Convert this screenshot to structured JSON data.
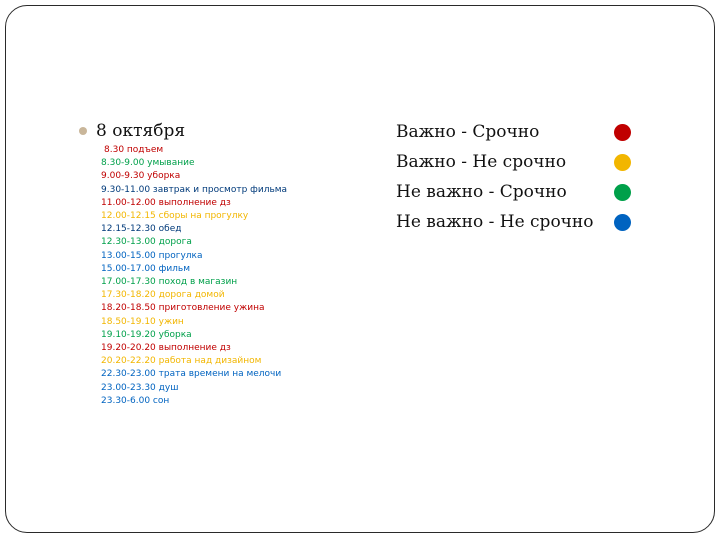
{
  "colors": {
    "red": "#c00000",
    "yellow": "#f2b600",
    "green": "#00a04a",
    "blue": "#0063c0",
    "dark_blue": "#003a7a"
  },
  "heading": "8 октября",
  "schedule": [
    {
      "text": "8.30 подъем",
      "color": "#c00000"
    },
    {
      "text": "8.30-9.00 умывание",
      "color": "#00a04a"
    },
    {
      "text": "9.00-9.30 уборка",
      "color": "#c00000"
    },
    {
      "text": "9.30-11.00 завтрак и просмотр фильма",
      "color": "#003a7a"
    },
    {
      "text": "11.00-12.00 выполнение дз",
      "color": "#c00000"
    },
    {
      "text": "12.00-12.15 сборы на прогулку",
      "color": "#f2b600"
    },
    {
      "text": "12.15-12.30 обед",
      "color": "#003a7a"
    },
    {
      "text": "12.30-13.00 дорога",
      "color": "#00a04a"
    },
    {
      "text": "13.00-15.00 прогулка",
      "color": "#0063c0"
    },
    {
      "text": "15.00-17.00 фильм",
      "color": "#0063c0"
    },
    {
      "text": "17.00-17.30 поход в магазин",
      "color": "#00a04a"
    },
    {
      "text": "17.30-18.20 дорога домой",
      "color": "#f2b600"
    },
    {
      "text": "18.20-18.50 приготовление ужина",
      "color": "#c00000"
    },
    {
      "text": "18.50-19.10 ужин",
      "color": "#f2b600"
    },
    {
      "text": "19.10-19.20 уборка",
      "color": "#00a04a"
    },
    {
      "text": "19.20-20.20 выполнение дз",
      "color": "#c00000"
    },
    {
      "text": "20.20-22.20 работа над дизайном",
      "color": "#f2b600"
    },
    {
      "text": "22.30-23.00 трата времени на мелочи",
      "color": "#0063c0"
    },
    {
      "text": "23.00-23.30 душ",
      "color": "#0063c0"
    },
    {
      "text": "23.30-6.00 сон",
      "color": "#0063c0"
    }
  ],
  "legend": [
    {
      "label": "Важно - Срочно",
      "color": "#c00000"
    },
    {
      "label": "Важно - Не срочно",
      "color": "#f2b600"
    },
    {
      "label": "Не важно - Срочно",
      "color": "#00a04a"
    },
    {
      "label": "Не важно - Не срочно",
      "color": "#0063c0"
    }
  ]
}
